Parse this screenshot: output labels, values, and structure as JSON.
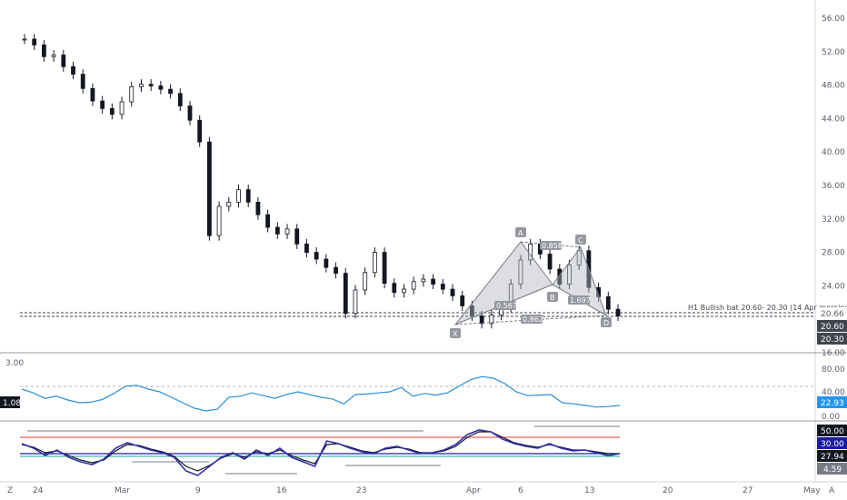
{
  "price_axis": {
    "ticks": [
      "56.00",
      "52.00",
      "48.00",
      "44.00",
      "40.00",
      "36.00",
      "32.00",
      "28.00",
      "24.00",
      "16.00"
    ],
    "badges": [
      {
        "label": "20.66",
        "color": "#ffffff",
        "text": "#131722"
      },
      {
        "label": "20.60",
        "color": "#434651",
        "text": "#ffffff"
      },
      {
        "label": "20.30",
        "color": "#434651",
        "text": "#ffffff"
      }
    ]
  },
  "rsi_axis": {
    "left_value": "3.00",
    "left_badge": "1.08",
    "ticks": [
      "80.00",
      "40.00",
      "0.00"
    ],
    "badge": {
      "label": "22.93",
      "color": "#2196f3"
    }
  },
  "stoch_axis": {
    "badges": [
      {
        "label": "50.00",
        "color": "#131722"
      },
      {
        "label": "30.00",
        "color": "#1a1aa6"
      },
      {
        "label": "27.94",
        "color": "#131722"
      },
      {
        "label": "4.59",
        "color": "#787b86"
      }
    ]
  },
  "time_axis": {
    "labels": [
      "24",
      "Mar",
      "9",
      "16",
      "23",
      "Apr",
      "6",
      "13",
      "20",
      "27",
      "May"
    ],
    "left_button": "Z",
    "right_button": "A"
  },
  "annotation": "H1 Bullish bat 20.60- 20.30 (14 Apr morning)",
  "pattern": {
    "points": [
      "X",
      "A",
      "B",
      "C",
      "D"
    ],
    "ratios": [
      "0.567",
      "0.858",
      "1.697",
      "0.862"
    ]
  },
  "chart_data": [
    {
      "type": "candlestick",
      "title": "",
      "ylim": [
        16,
        58
      ],
      "series": [
        {
          "name": "price",
          "values": [
            53.5,
            52.8,
            51.4,
            51.6,
            50.2,
            49.3,
            47.6,
            46.1,
            45.2,
            44.5,
            46.0,
            47.8,
            48.1,
            47.9,
            47.5,
            47.0,
            45.5,
            43.8,
            41.2,
            30.0,
            33.5,
            34.0,
            35.5,
            34.0,
            32.5,
            31.0,
            30.2,
            30.8,
            29.0,
            28.0,
            27.2,
            26.2,
            25.5,
            20.7,
            23.5,
            25.6,
            28.0,
            24.3,
            23.2,
            23.6,
            24.5,
            24.8,
            24.2,
            23.6,
            22.8,
            21.6,
            20.4,
            19.5,
            20.5,
            21.4,
            24.2,
            27.1,
            29.0,
            27.8,
            26.0,
            24.2,
            26.5,
            28.2,
            23.8,
            22.7,
            21.2,
            20.4
          ]
        }
      ]
    },
    {
      "type": "line",
      "title": "",
      "ylim": [
        0,
        100
      ],
      "series": [
        {
          "name": "rsi",
          "values": [
            55,
            48,
            38,
            42,
            35,
            30,
            31,
            36,
            47,
            60,
            62,
            55,
            50,
            40,
            30,
            20,
            15,
            18,
            40,
            42,
            48,
            43,
            38,
            45,
            50,
            45,
            40,
            37,
            28,
            45,
            46,
            48,
            50,
            58,
            42,
            47,
            44,
            48,
            60,
            72,
            78,
            75,
            65,
            50,
            43,
            44,
            45,
            30,
            28,
            25,
            22,
            23,
            25
          ]
        }
      ]
    },
    {
      "type": "line",
      "title": "",
      "ylim": [
        0,
        60
      ],
      "series": [
        {
          "name": "k",
          "values": [
            35,
            30,
            22,
            28,
            20,
            15,
            12,
            18,
            30,
            36,
            32,
            28,
            25,
            20,
            5,
            0,
            10,
            20,
            25,
            18,
            28,
            22,
            30,
            20,
            15,
            10,
            38,
            35,
            30,
            26,
            24,
            30,
            32,
            28,
            24,
            25,
            28,
            34,
            45,
            50,
            48,
            40,
            35,
            32,
            30,
            35,
            30,
            27,
            28,
            25,
            22,
            24
          ]
        },
        {
          "name": "d",
          "values": [
            34,
            31,
            25,
            27,
            22,
            17,
            14,
            17,
            27,
            34,
            33,
            29,
            26,
            21,
            10,
            5,
            11,
            19,
            24,
            20,
            26,
            24,
            28,
            22,
            17,
            13,
            34,
            35,
            31,
            27,
            25,
            29,
            31,
            29,
            25,
            25,
            27,
            32,
            42,
            48,
            48,
            42,
            36,
            33,
            31,
            34,
            31,
            28,
            28,
            26,
            24,
            24
          ]
        }
      ]
    }
  ]
}
